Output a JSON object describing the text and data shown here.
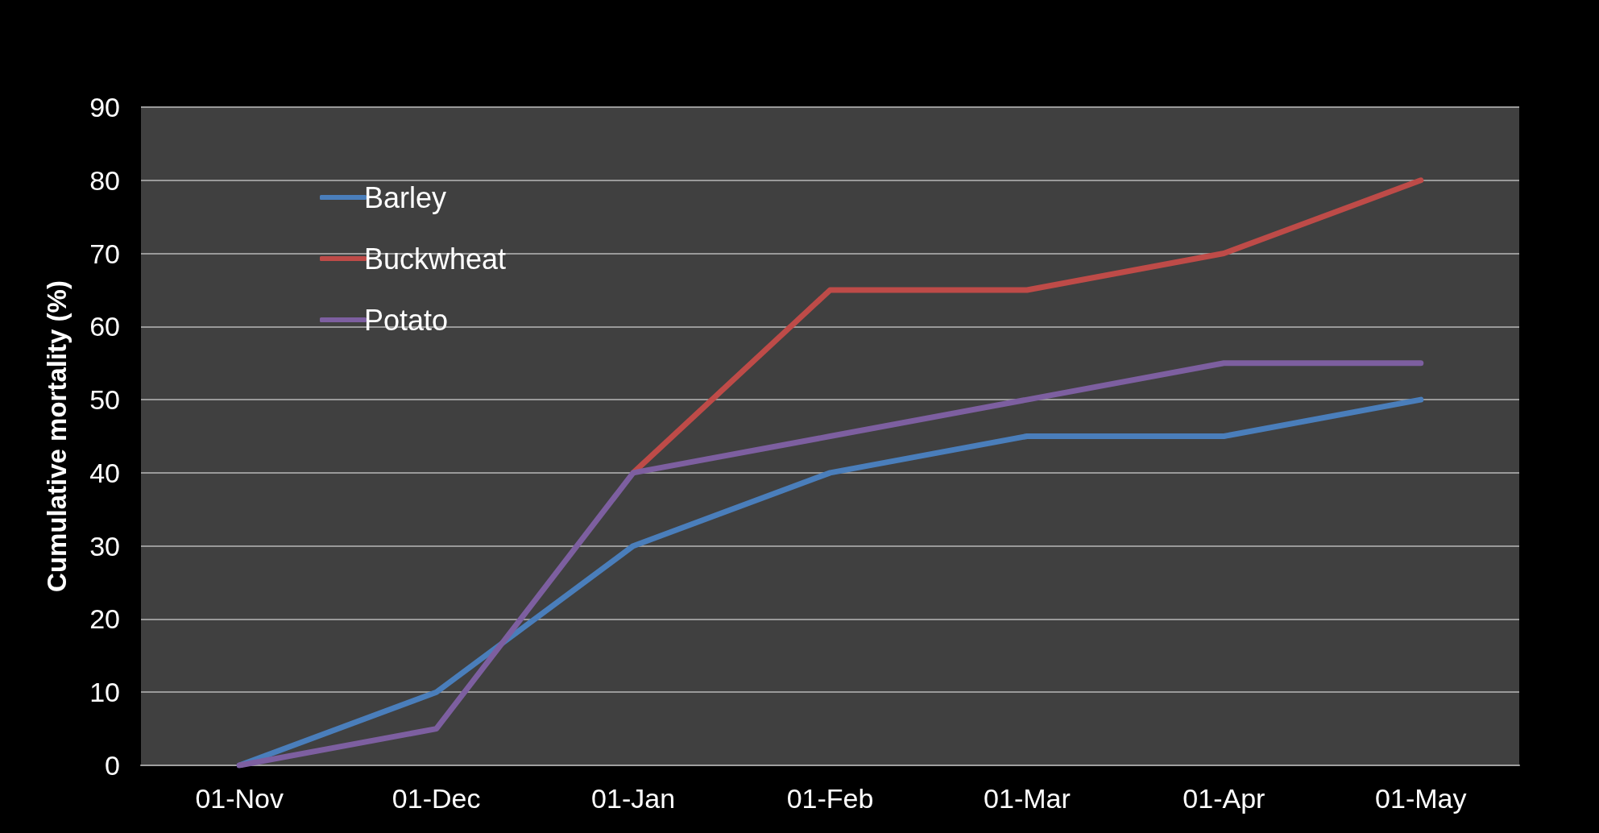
{
  "chart_data": {
    "type": "line",
    "ylabel": "Cumulative mortality (%)",
    "categories": [
      "01-Nov",
      "01-Dec",
      "01-Jan",
      "01-Feb",
      "01-Mar",
      "01-Apr",
      "01-May"
    ],
    "series": [
      {
        "name": "Barley",
        "color": "#4a7ebb",
        "values": [
          0,
          10,
          30,
          40,
          45,
          45,
          50
        ]
      },
      {
        "name": "Buckwheat",
        "color": "#be4b48",
        "values": [
          null,
          null,
          40,
          65,
          65,
          70,
          80
        ]
      },
      {
        "name": "Potato",
        "color": "#7d5fa0",
        "values": [
          0,
          5,
          40,
          45,
          50,
          55,
          55
        ]
      }
    ],
    "ylim": [
      0,
      90
    ],
    "yticks": [
      0,
      10,
      20,
      30,
      40,
      50,
      60,
      70,
      80,
      90
    ],
    "grid": "y",
    "legend": "top left",
    "marker": "none",
    "line_style": "solid"
  }
}
